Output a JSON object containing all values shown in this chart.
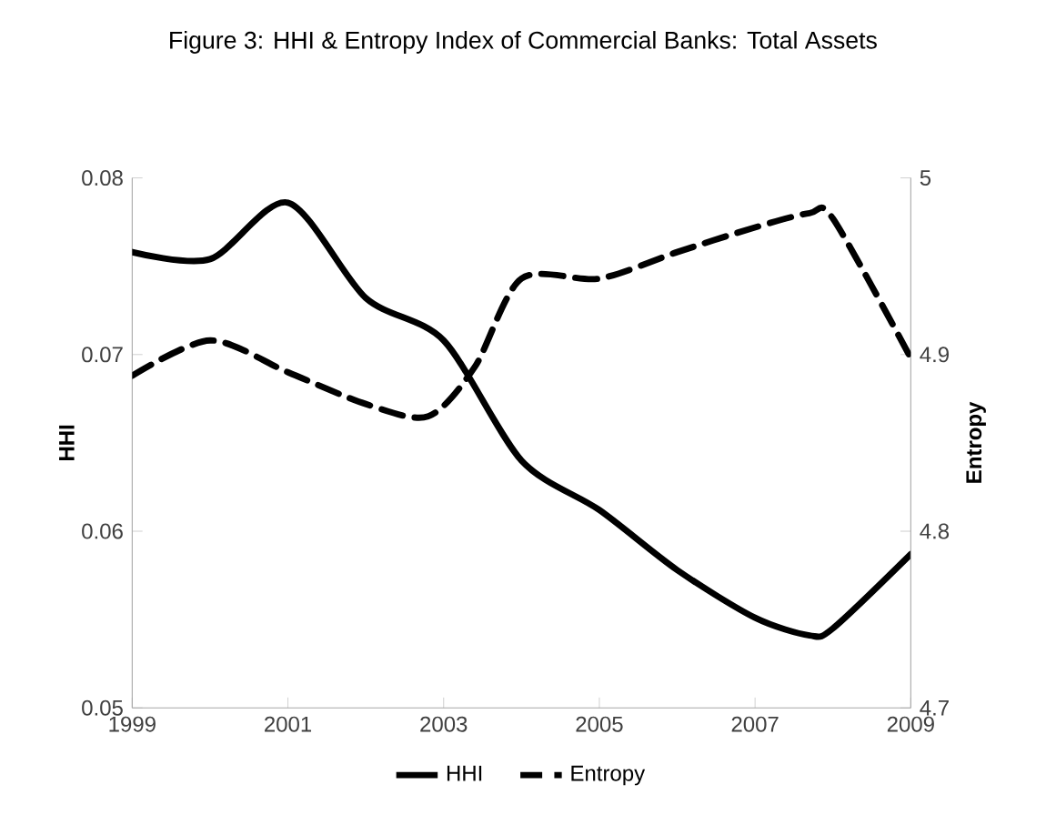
{
  "chart_data": {
    "type": "line",
    "title": "Figure 3: HHI & Entropy Index of Commercial Banks: Total Assets",
    "ylabel": "HHI",
    "y2label": "Entropy",
    "xlim": [
      1999,
      2009
    ],
    "xticks": [
      1999,
      2001,
      2003,
      2005,
      2007,
      2009
    ],
    "ylim": [
      0.05,
      0.08
    ],
    "yticks": [
      0.05,
      0.06,
      0.07,
      0.08
    ],
    "y2lim": [
      4.7,
      5
    ],
    "y2ticks": [
      4.7,
      4.8,
      4.9,
      5
    ],
    "legend": "bottom",
    "series": [
      {
        "name": "HHI",
        "color": "#000000",
        "line_style": "solid",
        "x": [
          1999,
          2000,
          2001,
          2002,
          2003,
          2004,
          2005,
          2006,
          2007,
          2007.7,
          2008,
          2009
        ],
        "values": [
          0.0758,
          0.0754,
          0.0786,
          0.0732,
          0.0708,
          0.064,
          0.0612,
          0.0578,
          0.0551,
          0.0541,
          0.0545,
          0.0587
        ]
      },
      {
        "name": "Entropy",
        "color": "#000000",
        "line_style": "dashed",
        "axis": "y2",
        "x": [
          1999,
          2000,
          2001,
          2002,
          2002.8,
          2003.4,
          2004,
          2005,
          2006,
          2007,
          2007.7,
          2008,
          2009
        ],
        "values": [
          4.888,
          4.908,
          4.89,
          4.872,
          4.865,
          4.893,
          4.943,
          4.943,
          4.958,
          4.972,
          4.98,
          4.977,
          4.898
        ]
      }
    ]
  }
}
